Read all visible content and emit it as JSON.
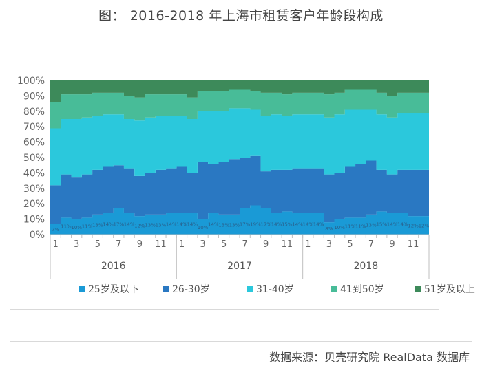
{
  "page": {
    "title": "图：  2016-2018 年上海市租赁客户年龄段构成",
    "source": "数据来源：贝壳研究院 RealData 数据库"
  },
  "chart_data": {
    "type": "area",
    "stacked": true,
    "ylim": [
      0,
      100
    ],
    "y_ticks": [
      "0%",
      "10%",
      "20%",
      "30%",
      "40%",
      "50%",
      "60%",
      "70%",
      "80%",
      "90%",
      "100%"
    ],
    "x_tick_labels": [
      "1",
      "",
      "3",
      "",
      "5",
      "",
      "7",
      "",
      "9",
      "",
      "11",
      "",
      "1",
      "",
      "3",
      "",
      "5",
      "",
      "7",
      "",
      "9",
      "",
      "11",
      "",
      "1",
      "",
      "3",
      "",
      "5",
      "",
      "7",
      "",
      "9",
      "",
      "11",
      ""
    ],
    "years": [
      "2016",
      "2017",
      "2018"
    ],
    "months_per_year": 12,
    "series": [
      {
        "name": "25岁及以下",
        "color": "#1a9ad6",
        "values": [
          7,
          11,
          10,
          11,
          13,
          14,
          17,
          14,
          12,
          13,
          13,
          14,
          14,
          14,
          10,
          14,
          13,
          13,
          17,
          19,
          17,
          14,
          15,
          14,
          14,
          14,
          8,
          10,
          11,
          11,
          13,
          15,
          14,
          14,
          12,
          12
        ]
      },
      {
        "name": "26-30岁",
        "color": "#2a78c2",
        "values": [
          25,
          28,
          27,
          28,
          29,
          30,
          28,
          29,
          26,
          27,
          29,
          29,
          30,
          26,
          37,
          32,
          34,
          36,
          33,
          32,
          24,
          28,
          27,
          29,
          29,
          29,
          31,
          30,
          33,
          35,
          35,
          27,
          25,
          28,
          30,
          30
        ]
      },
      {
        "name": "31-40岁",
        "color": "#2bc8dc",
        "values": [
          37,
          36,
          38,
          37,
          35,
          34,
          33,
          32,
          36,
          36,
          35,
          34,
          33,
          35,
          33,
          34,
          33,
          33,
          32,
          30,
          36,
          36,
          35,
          35,
          35,
          35,
          37,
          38,
          37,
          35,
          33,
          36,
          37,
          37,
          37,
          37
        ]
      },
      {
        "name": "41到50岁",
        "color": "#48bc98",
        "values": [
          17,
          16,
          16,
          15,
          15,
          14,
          14,
          15,
          15,
          15,
          14,
          14,
          14,
          14,
          13,
          13,
          13,
          12,
          12,
          12,
          15,
          14,
          14,
          14,
          14,
          14,
          15,
          14,
          13,
          13,
          13,
          14,
          14,
          13,
          13,
          13
        ]
      },
      {
        "name": "51岁及以上",
        "color": "#3d8a5a",
        "values": [
          14,
          9,
          9,
          9,
          8,
          8,
          8,
          10,
          11,
          9,
          9,
          9,
          9,
          11,
          7,
          7,
          7,
          6,
          6,
          7,
          8,
          8,
          9,
          8,
          8,
          8,
          9,
          8,
          6,
          6,
          6,
          8,
          10,
          8,
          8,
          8
        ]
      }
    ],
    "data_labels_series0": [
      "7%",
      "11%",
      "10%",
      "11%",
      "13%",
      "14%",
      "17%",
      "14%",
      "12%",
      "13%",
      "13%",
      "14%",
      "14%",
      "14%",
      "10%",
      "14%",
      "13%",
      "13%",
      "17%",
      "19%",
      "17%",
      "14%",
      "15%",
      "14%",
      "14%",
      "14%",
      "8%",
      "10%",
      "11%",
      "11%",
      "13%",
      "15%",
      "14%",
      "14%",
      "12%",
      "12%"
    ],
    "legend_position": "bottom",
    "grid": false
  }
}
